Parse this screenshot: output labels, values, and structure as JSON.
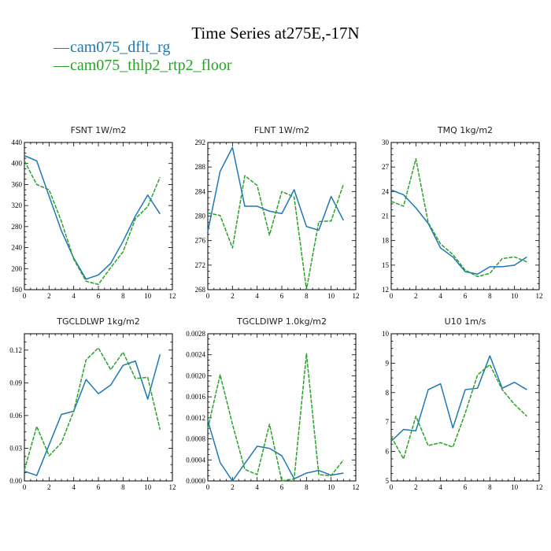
{
  "title": "Time Series at275E,-17N",
  "colors": {
    "series1": "#1f77b4",
    "series2": "#2ca02c"
  },
  "legend": [
    {
      "name": "cam075_dflt_rg",
      "color": "#1f77b4",
      "dash": false
    },
    {
      "name": "cam075_thlp2_rtp2_floor",
      "color": "#2ca02c",
      "dash": true
    }
  ],
  "chart_data": [
    {
      "type": "line",
      "title": "FSNT   1W/m2",
      "xlim": [
        0,
        12
      ],
      "xticks": [
        0,
        2,
        4,
        6,
        8,
        10,
        12
      ],
      "ylim": [
        160,
        440
      ],
      "yticks": [
        160,
        200,
        240,
        280,
        320,
        360,
        400,
        440
      ],
      "x": [
        0,
        1,
        2,
        3,
        4,
        5,
        6,
        7,
        8,
        9,
        10,
        11
      ],
      "series": [
        {
          "name": "cam075_dflt_rg",
          "values": [
            415,
            405,
            338,
            272,
            220,
            180,
            188,
            210,
            252,
            300,
            340,
            304
          ]
        },
        {
          "name": "cam075_thlp2_rtp2_floor",
          "values": [
            405,
            360,
            350,
            290,
            218,
            176,
            170,
            202,
            232,
            295,
            318,
            374
          ]
        }
      ]
    },
    {
      "type": "line",
      "title": "FLNT   1W/m2",
      "xlim": [
        0,
        12
      ],
      "xticks": [
        0,
        2,
        4,
        6,
        8,
        10,
        12
      ],
      "ylim": [
        268,
        292
      ],
      "yticks": [
        268,
        272,
        276,
        280,
        284,
        288,
        292
      ],
      "x": [
        0,
        1,
        2,
        3,
        4,
        5,
        6,
        7,
        8,
        9,
        10,
        11
      ],
      "series": [
        {
          "name": "cam075_dflt_rg",
          "values": [
            277.5,
            287.3,
            291.2,
            281.6,
            281.6,
            280.8,
            280.4,
            284.3,
            278.3,
            277.7,
            283.2,
            279.3
          ]
        },
        {
          "name": "cam075_thlp2_rtp2_floor",
          "values": [
            280.5,
            280.1,
            274.8,
            286.6,
            285.0,
            276.9,
            284.0,
            283.1,
            268.0,
            279.1,
            279.2,
            285.2
          ]
        }
      ]
    },
    {
      "type": "line",
      "title": "TMQ   1kg/m2",
      "xlim": [
        0,
        12
      ],
      "xticks": [
        0,
        2,
        4,
        6,
        8,
        10,
        12
      ],
      "ylim": [
        12,
        30
      ],
      "yticks": [
        12,
        15,
        18,
        21,
        24,
        27,
        30
      ],
      "x": [
        0,
        1,
        2,
        3,
        4,
        5,
        6,
        7,
        8,
        9,
        10,
        11
      ],
      "series": [
        {
          "name": "cam075_dflt_rg",
          "values": [
            24.2,
            23.6,
            22.0,
            20.1,
            17.1,
            16.0,
            14.2,
            13.9,
            14.8,
            14.8,
            15.0,
            16.0
          ]
        },
        {
          "name": "cam075_thlp2_rtp2_floor",
          "values": [
            22.8,
            22.2,
            28.0,
            20.2,
            17.6,
            16.3,
            14.4,
            13.6,
            14.0,
            15.8,
            16.0,
            15.4
          ]
        }
      ]
    },
    {
      "type": "line",
      "title": "TGCLDLWP   1kg/m2",
      "xlim": [
        0,
        12
      ],
      "xticks": [
        0,
        2,
        4,
        6,
        8,
        10,
        12
      ],
      "ylim": [
        0,
        0.135
      ],
      "yticks": [
        0.0,
        0.03,
        0.06,
        0.09,
        0.12
      ],
      "yticklabels": [
        "0.00",
        "0.03",
        "0.06",
        "0.09",
        "0.12"
      ],
      "x": [
        0,
        1,
        2,
        3,
        4,
        5,
        6,
        7,
        8,
        9,
        10,
        11
      ],
      "series": [
        {
          "name": "cam075_dflt_rg",
          "values": [
            0.009,
            0.005,
            0.033,
            0.061,
            0.064,
            0.093,
            0.08,
            0.088,
            0.106,
            0.11,
            0.075,
            0.116
          ]
        },
        {
          "name": "cam075_thlp2_rtp2_floor",
          "values": [
            0.01,
            0.05,
            0.023,
            0.035,
            0.064,
            0.111,
            0.122,
            0.102,
            0.118,
            0.094,
            0.095,
            0.047
          ]
        }
      ]
    },
    {
      "type": "line",
      "title": "TGCLDIWP   1.0kg/m2",
      "xlim": [
        0,
        12
      ],
      "xticks": [
        0,
        2,
        4,
        6,
        8,
        10,
        12
      ],
      "ylim": [
        0,
        0.0028
      ],
      "yticks": [
        0,
        0.0004,
        0.0008,
        0.0012,
        0.0016,
        0.002,
        0.0024,
        0.0028
      ],
      "yticklabels": [
        "0.0000",
        "0.0004",
        "0.0008",
        "0.0012",
        "0.0016",
        "0.0020",
        "0.0024",
        "0.0028"
      ],
      "x": [
        0,
        1,
        2,
        3,
        4,
        5,
        6,
        7,
        8,
        9,
        10,
        11
      ],
      "series": [
        {
          "name": "cam075_dflt_rg",
          "values": [
            0.00115,
            0.00035,
            0.0,
            0.00033,
            0.00066,
            0.00062,
            0.00048,
            4e-05,
            0.00015,
            0.0002,
            0.00011,
            0.00015
          ]
        },
        {
          "name": "cam075_thlp2_rtp2_floor",
          "values": [
            0.001,
            0.00202,
            0.00108,
            0.00022,
            0.00012,
            0.00108,
            0.0,
            4e-05,
            0.00242,
            0.00012,
            0.0001,
            0.0004
          ]
        }
      ]
    },
    {
      "type": "line",
      "title": "U10   1m/s",
      "xlim": [
        0,
        12
      ],
      "xticks": [
        0,
        2,
        4,
        6,
        8,
        10,
        12
      ],
      "ylim": [
        5,
        10
      ],
      "yticks": [
        5,
        6,
        7,
        8,
        9,
        10
      ],
      "x": [
        0,
        1,
        2,
        3,
        4,
        5,
        6,
        7,
        8,
        9,
        10,
        11
      ],
      "series": [
        {
          "name": "cam075_dflt_rg",
          "values": [
            6.35,
            6.75,
            6.7,
            8.1,
            8.3,
            6.8,
            8.1,
            8.15,
            9.25,
            8.15,
            8.35,
            8.1
          ]
        },
        {
          "name": "cam075_thlp2_rtp2_floor",
          "values": [
            6.5,
            5.75,
            7.2,
            6.2,
            6.3,
            6.15,
            7.3,
            8.6,
            8.95,
            8.1,
            7.6,
            7.2
          ]
        }
      ]
    }
  ]
}
